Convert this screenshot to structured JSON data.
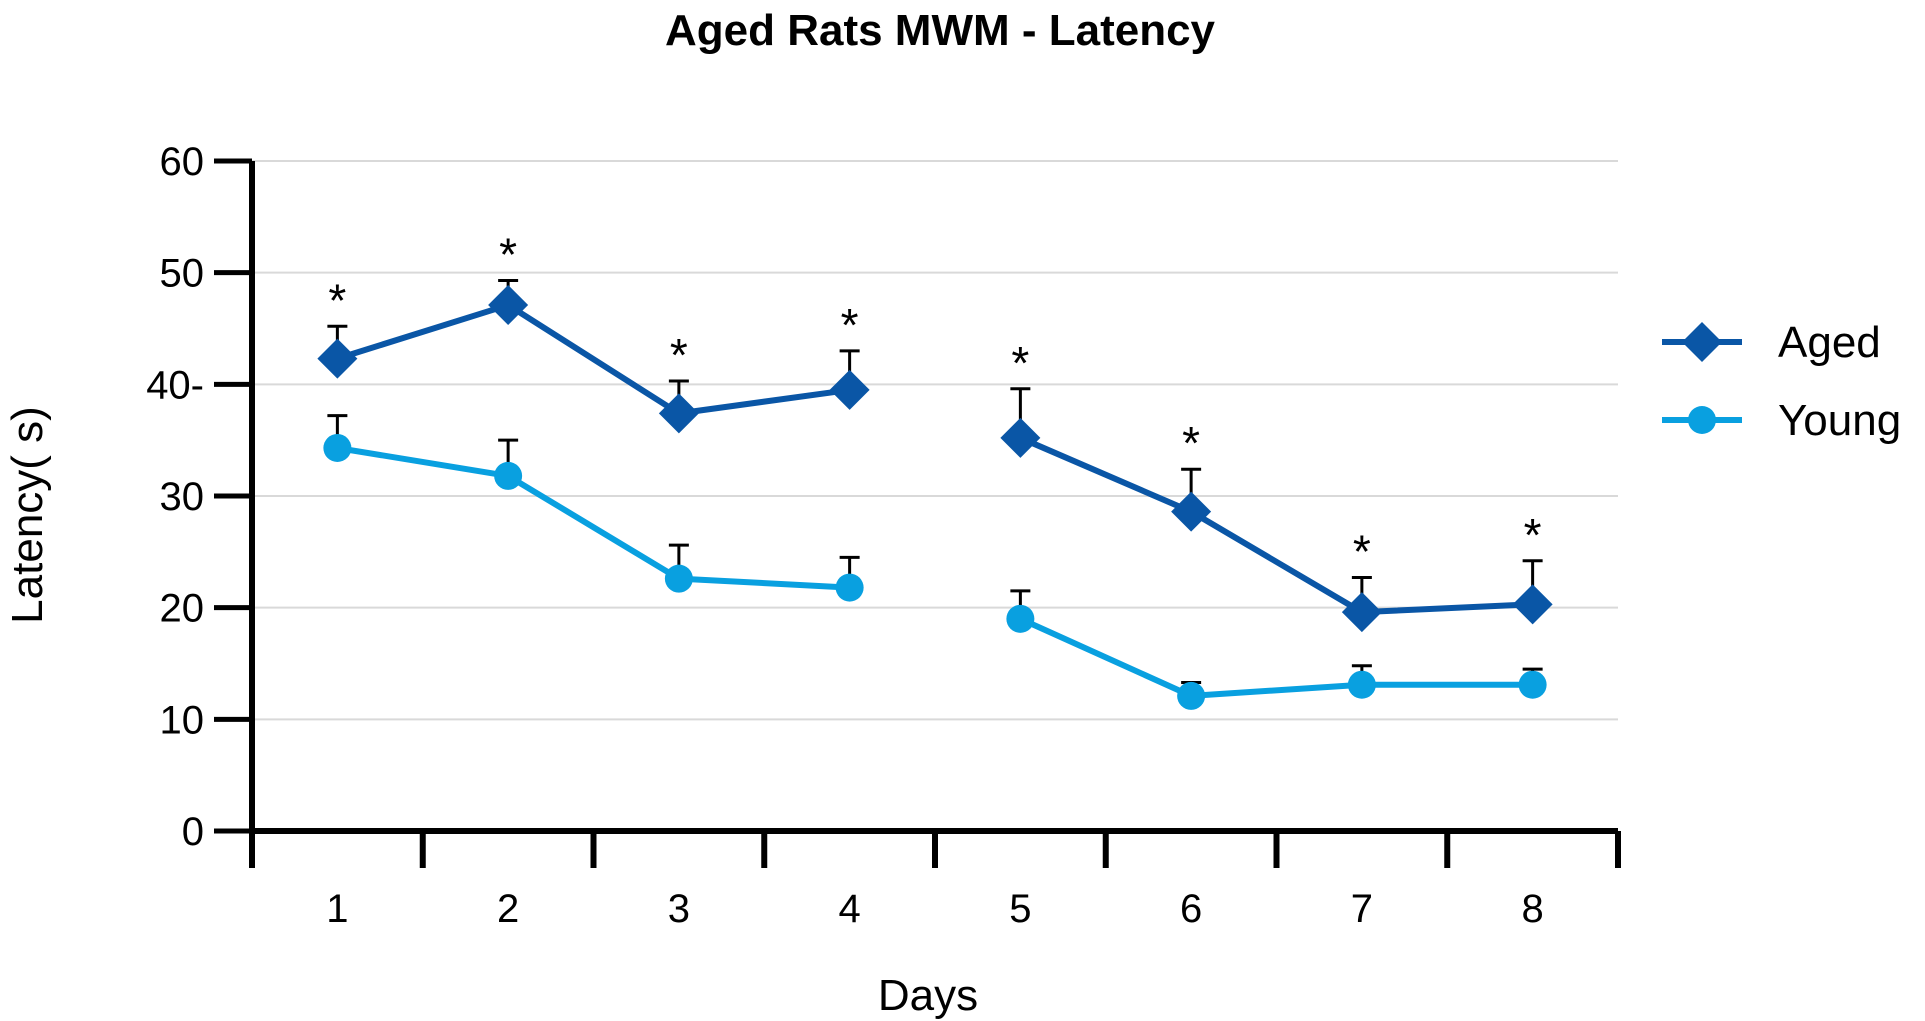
{
  "chart_data": {
    "type": "line",
    "title": "Aged Rats MWM - Latency",
    "xlabel": "Days",
    "ylabel": "Latency( s)",
    "categories": [
      "1",
      "2",
      "3",
      "4",
      "5",
      "6",
      "7",
      "8"
    ],
    "ylim": [
      0,
      60
    ],
    "yticks": [
      0,
      10,
      20,
      30,
      40,
      50,
      60
    ],
    "ytick_labels": [
      "0",
      "10",
      "20",
      "30",
      "40-",
      "50",
      "60"
    ],
    "grid": true,
    "legend_position": "right",
    "line_breaks_after_category": "4",
    "series": [
      {
        "name": "Aged",
        "color": "#0a56a6",
        "marker": "diamond",
        "values": [
          42.3,
          47.1,
          37.4,
          39.5,
          35.2,
          28.6,
          19.6,
          20.3
        ],
        "error_upper": [
          45.2,
          49.3,
          40.3,
          43.0,
          39.6,
          32.4,
          22.7,
          24.2
        ]
      },
      {
        "name": "Young",
        "color": "#09a0e0",
        "marker": "circle",
        "values": [
          34.3,
          31.8,
          22.6,
          21.8,
          19.0,
          12.1,
          13.1,
          13.1
        ],
        "error_upper": [
          37.2,
          35.0,
          25.6,
          24.5,
          21.5,
          13.3,
          14.8,
          14.5
        ]
      }
    ],
    "annotations": {
      "significance_marker": "*",
      "significant_days": [
        "1",
        "2",
        "3",
        "4",
        "5",
        "6",
        "7",
        "8"
      ]
    }
  }
}
